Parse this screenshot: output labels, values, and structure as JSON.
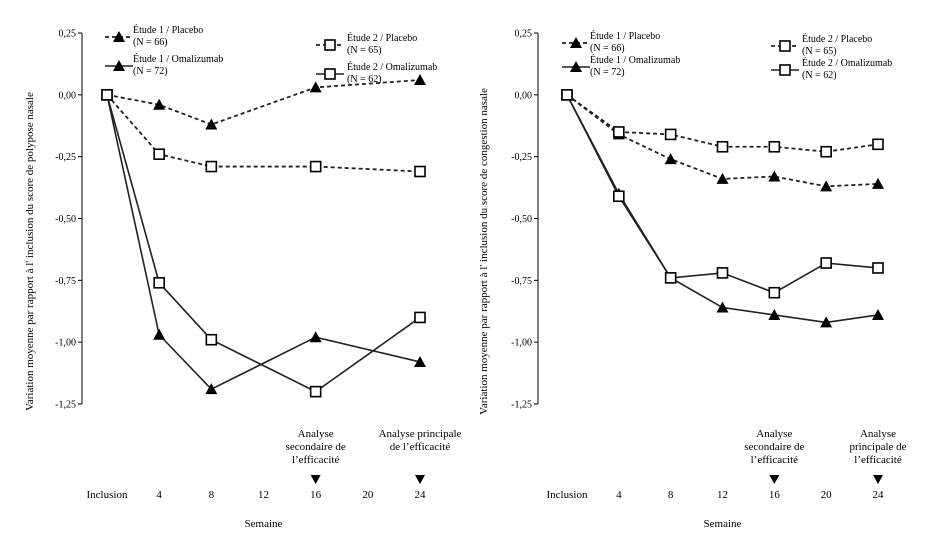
{
  "chart_data": [
    {
      "type": "line",
      "ylabel": "Variation moyenne par rapport à l' inclusion du score de polypose nasale",
      "xlabel": "Semaine",
      "x": [
        "Inclusion",
        "4",
        "8",
        "12",
        "16",
        "20",
        "24"
      ],
      "yticks": [
        "0,25",
        "0,00",
        "-0,25",
        "-0,50",
        "-0,75",
        "-1,00",
        "-1,25"
      ],
      "ylim": [
        -1.25,
        0.25
      ],
      "grid": false,
      "legend_position": "top",
      "series": [
        {
          "name": "Étude 1 / Placebo",
          "n": "(N = 66)",
          "marker": "triangle",
          "line": "dashed",
          "points": [
            [
              0,
              0.0
            ],
            [
              4,
              -0.04
            ],
            [
              8,
              -0.12
            ],
            [
              16,
              0.03
            ],
            [
              24,
              0.06
            ]
          ]
        },
        {
          "name": "Étude 1 / Omalizumab",
          "n": "(N = 72)",
          "marker": "triangle",
          "line": "solid",
          "points": [
            [
              0,
              0.0
            ],
            [
              4,
              -0.97
            ],
            [
              8,
              -1.19
            ],
            [
              16,
              -0.98
            ],
            [
              24,
              -1.08
            ]
          ]
        },
        {
          "name": "Étude 2 / Placebo",
          "n": "(N = 65)",
          "marker": "square",
          "line": "dashed",
          "points": [
            [
              0,
              0.0
            ],
            [
              4,
              -0.24
            ],
            [
              8,
              -0.29
            ],
            [
              16,
              -0.29
            ],
            [
              24,
              -0.31
            ]
          ]
        },
        {
          "name": "Étude 2 / Omalizumab",
          "n": "(N = 62)",
          "marker": "square",
          "line": "solid",
          "points": [
            [
              0,
              0.0
            ],
            [
              4,
              -0.76
            ],
            [
              8,
              -0.99
            ],
            [
              16,
              -1.2
            ],
            [
              24,
              -0.9
            ]
          ]
        }
      ],
      "annotations": [
        {
          "x": 16,
          "lines": [
            "Analyse",
            "secondaire de",
            "l’efficacité"
          ]
        },
        {
          "x": 24,
          "lines": [
            "Analyse principale",
            "de l’efficacité"
          ]
        }
      ]
    },
    {
      "type": "line",
      "ylabel": "Variation moyenne par rapport à l' inclusion du score de congestion nasale",
      "xlabel": "Semaine",
      "x": [
        "Inclusion",
        "4",
        "8",
        "12",
        "16",
        "20",
        "24"
      ],
      "yticks": [
        "0,25",
        "0,00",
        "-0,25",
        "-0,50",
        "-0,75",
        "-1,00",
        "-1,25"
      ],
      "ylim": [
        -1.25,
        0.25
      ],
      "grid": false,
      "legend_position": "top",
      "series": [
        {
          "name": "Étude 1 / Placebo",
          "n": "(N = 66)",
          "marker": "triangle",
          "line": "dashed",
          "points": [
            [
              0,
              0.0
            ],
            [
              4,
              -0.16
            ],
            [
              8,
              -0.26
            ],
            [
              12,
              -0.34
            ],
            [
              16,
              -0.33
            ],
            [
              20,
              -0.37
            ],
            [
              24,
              -0.36
            ]
          ]
        },
        {
          "name": "Étude 1 / Omalizumab",
          "n": "(N = 72)",
          "marker": "triangle",
          "line": "solid",
          "points": [
            [
              0,
              0.0
            ],
            [
              4,
              -0.4
            ],
            [
              8,
              -0.74
            ],
            [
              12,
              -0.86
            ],
            [
              16,
              -0.89
            ],
            [
              20,
              -0.92
            ],
            [
              24,
              -0.89
            ]
          ]
        },
        {
          "name": "Étude 2 / Placebo",
          "n": "(N = 65)",
          "marker": "square",
          "line": "dashed",
          "points": [
            [
              0,
              0.0
            ],
            [
              4,
              -0.15
            ],
            [
              8,
              -0.16
            ],
            [
              12,
              -0.21
            ],
            [
              16,
              -0.21
            ],
            [
              20,
              -0.23
            ],
            [
              24,
              -0.2
            ]
          ]
        },
        {
          "name": "Étude 2 / Omalizumab",
          "n": "(N = 62)",
          "marker": "square",
          "line": "solid",
          "points": [
            [
              0,
              0.0
            ],
            [
              4,
              -0.41
            ],
            [
              8,
              -0.74
            ],
            [
              12,
              -0.72
            ],
            [
              16,
              -0.8
            ],
            [
              20,
              -0.68
            ],
            [
              24,
              -0.7
            ]
          ]
        }
      ],
      "annotations": [
        {
          "x": 16,
          "lines": [
            "Analyse",
            "secondaire de",
            "l’efficacité"
          ]
        },
        {
          "x": 24,
          "lines": [
            "Analyse",
            "principale de",
            "l’efficacité"
          ]
        }
      ]
    }
  ]
}
